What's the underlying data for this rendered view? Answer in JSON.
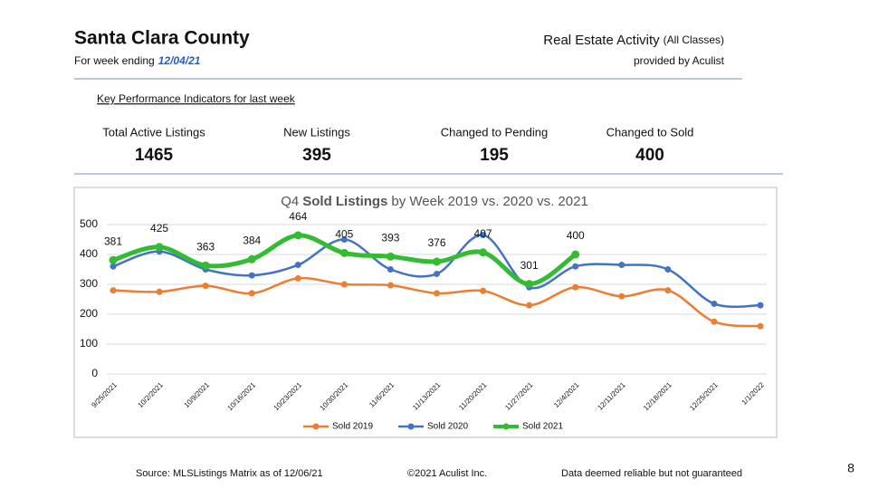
{
  "header": {
    "title": "Santa Clara County",
    "week_prefix": "For week ending",
    "week_date": "12/04/21",
    "report_title": "Real Estate Activity",
    "report_classes": "(All Classes)",
    "provider": "provided by Aculist"
  },
  "kpi_heading": "Key Performance Indicators for last week",
  "kpis": [
    {
      "label": "Total Active Listings",
      "value": 1465
    },
    {
      "label": "New Listings",
      "value": 395
    },
    {
      "label": "Changed to Pending",
      "value": 195
    },
    {
      "label": "Changed to Sold",
      "value": 400
    }
  ],
  "chart_data": {
    "type": "line",
    "title": [
      "Q4",
      "Sold Listings",
      "by Week 2019 vs. 2020 vs. 2021"
    ],
    "categories": [
      "9/25/2021",
      "10/2/2021",
      "10/9/2021",
      "10/16/2021",
      "10/23/2021",
      "10/30/2021",
      "11/6/2021",
      "11/13/2021",
      "11/20/2021",
      "11/27/2021",
      "12/4/2021",
      "12/11/2021",
      "12/18/2021",
      "12/25/2021",
      "1/1/2022"
    ],
    "series": [
      {
        "name": "Sold 2019",
        "color": "#ed7d31",
        "values": [
          280,
          275,
          295,
          270,
          320,
          300,
          297,
          270,
          278,
          230,
          290,
          260,
          280,
          175,
          160
        ]
      },
      {
        "name": "Sold 2020",
        "color": "#4472c4",
        "values": [
          360,
          410,
          350,
          330,
          365,
          450,
          350,
          335,
          465,
          290,
          360,
          365,
          350,
          235,
          230
        ]
      },
      {
        "name": "Sold 2021",
        "color": "#33bb33",
        "values": [
          381,
          425,
          363,
          384,
          464,
          405,
          393,
          376,
          407,
          301,
          400,
          null,
          null,
          null,
          null
        ],
        "data_labels": true
      }
    ],
    "ylim": [
      0,
      500
    ],
    "yticks": [
      0,
      100,
      200,
      300,
      400,
      500
    ],
    "grid": true,
    "legend": "bottom"
  },
  "footer": {
    "source": "Source: MLSListings Matrix as of 12/06/21",
    "copyright": "©2021 Aculist Inc.",
    "disclaimer": "Data deemed reliable but not guaranteed",
    "page": "8"
  }
}
